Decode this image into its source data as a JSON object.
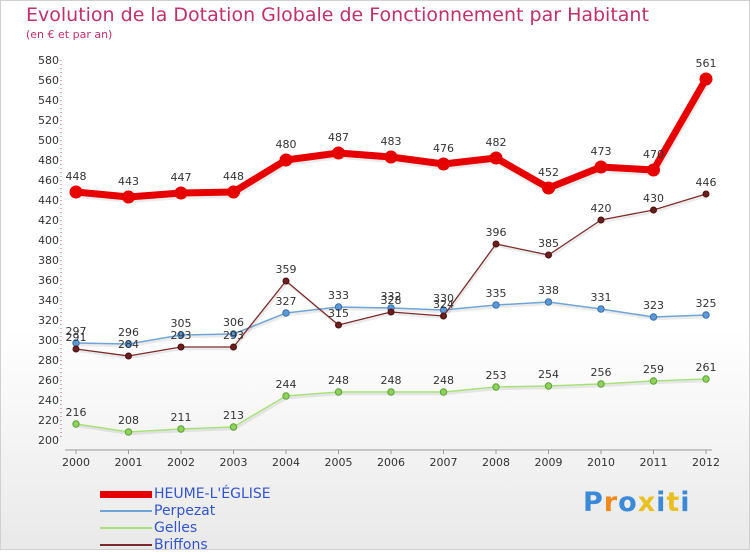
{
  "title": "Evolution de la Dotation Globale de Fonctionnement par Habitant",
  "subtitle": "(en € et par an)",
  "logo": {
    "text": "Proxiti",
    "letter_colors": [
      "#3b8ad8",
      "#f08a1c",
      "#3b8ad8",
      "#e8c020",
      "#3b8ad8",
      "#e8c020",
      "#3b8ad8"
    ]
  },
  "chart_data": {
    "type": "line",
    "x": [
      "2000",
      "2001",
      "2002",
      "2003",
      "2004",
      "2005",
      "2006",
      "2007",
      "2008",
      "2009",
      "2010",
      "2011",
      "2012"
    ],
    "ylim": [
      200,
      580
    ],
    "yticks": [
      200,
      220,
      240,
      260,
      280,
      300,
      320,
      340,
      360,
      380,
      400,
      420,
      440,
      460,
      480,
      500,
      520,
      540,
      560,
      580
    ],
    "grid": false,
    "legend_position": "bottom-left",
    "series": [
      {
        "name": "HEUME-L'ÉGLISE",
        "color": "#e60000",
        "values": [
          448,
          443,
          447,
          448,
          480,
          487,
          483,
          476,
          482,
          452,
          473,
          470,
          561
        ],
        "labels": [
          "448",
          "443",
          "447",
          "448",
          "480",
          "487",
          "483",
          "476",
          "482",
          "452",
          "473",
          "470",
          "561"
        ]
      },
      {
        "name": "Perpezat",
        "color": "#6fa4d4",
        "values": [
          297,
          296,
          305,
          306,
          327,
          333,
          332,
          330,
          335,
          338,
          331,
          323,
          325
        ],
        "labels": [
          "297",
          "296",
          "305",
          "306",
          "327",
          "333",
          "332",
          "330",
          "335",
          "338",
          "331",
          "323",
          "325"
        ]
      },
      {
        "name": "Gelles",
        "color": "#a8e07a",
        "values": [
          216,
          208,
          211,
          213,
          244,
          248,
          248,
          248,
          253,
          254,
          256,
          259,
          261
        ],
        "labels": [
          "216",
          "208",
          "211",
          "213",
          "244",
          "248",
          "248",
          "248",
          "253",
          "254",
          "256",
          "259",
          "261"
        ]
      },
      {
        "name": "Briffons",
        "color": "#7a2a2a",
        "values": [
          291,
          284,
          293,
          293,
          359,
          315,
          328,
          324,
          396,
          385,
          420,
          430,
          446
        ],
        "labels": [
          "291",
          "284",
          "293",
          "293",
          "359",
          "315",
          "328",
          "324",
          "396",
          "385",
          "420",
          "430",
          "446"
        ]
      }
    ]
  }
}
